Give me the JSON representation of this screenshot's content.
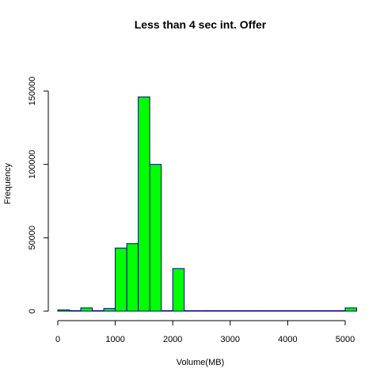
{
  "chart_data": {
    "type": "bar",
    "title": "Less than 4 sec int. Offer",
    "xlabel": "Volume(MB)",
    "ylabel": "Frequency",
    "xlim": [
      0,
      5200
    ],
    "ylim": [
      0,
      150000
    ],
    "x_ticks": [
      "0",
      "1000",
      "2000",
      "3000",
      "4000",
      "5000"
    ],
    "x_tick_values": [
      0,
      1000,
      2000,
      3000,
      4000,
      5000
    ],
    "y_ticks": [
      "0",
      "50000",
      "100000",
      "150000"
    ],
    "y_tick_values": [
      0,
      50000,
      100000,
      150000
    ],
    "grid": false,
    "bar_color": "#00ff00",
    "bar_border_color": "#000080",
    "bins": [
      {
        "start": 0,
        "end": 200,
        "value": 800
      },
      {
        "start": 200,
        "end": 400,
        "value": 300
      },
      {
        "start": 400,
        "end": 600,
        "value": 2200
      },
      {
        "start": 600,
        "end": 800,
        "value": 200
      },
      {
        "start": 800,
        "end": 1000,
        "value": 1800
      },
      {
        "start": 1000,
        "end": 1200,
        "value": 43000
      },
      {
        "start": 1200,
        "end": 1400,
        "value": 46000
      },
      {
        "start": 1400,
        "end": 1600,
        "value": 146000
      },
      {
        "start": 1600,
        "end": 1800,
        "value": 100000
      },
      {
        "start": 1800,
        "end": 2000,
        "value": 300
      },
      {
        "start": 2000,
        "end": 2200,
        "value": 29000
      },
      {
        "start": 2200,
        "end": 2400,
        "value": 200
      },
      {
        "start": 2400,
        "end": 2600,
        "value": 100
      },
      {
        "start": 2600,
        "end": 2800,
        "value": 100
      },
      {
        "start": 2800,
        "end": 3000,
        "value": 80
      },
      {
        "start": 3000,
        "end": 3200,
        "value": 60
      },
      {
        "start": 3200,
        "end": 3400,
        "value": 50
      },
      {
        "start": 3400,
        "end": 3600,
        "value": 40
      },
      {
        "start": 3600,
        "end": 3800,
        "value": 30
      },
      {
        "start": 3800,
        "end": 4000,
        "value": 30
      },
      {
        "start": 4000,
        "end": 4200,
        "value": 20
      },
      {
        "start": 4200,
        "end": 4400,
        "value": 20
      },
      {
        "start": 4400,
        "end": 4600,
        "value": 20
      },
      {
        "start": 4600,
        "end": 4800,
        "value": 10
      },
      {
        "start": 4800,
        "end": 5000,
        "value": 10
      },
      {
        "start": 5000,
        "end": 5200,
        "value": 2200
      }
    ]
  }
}
